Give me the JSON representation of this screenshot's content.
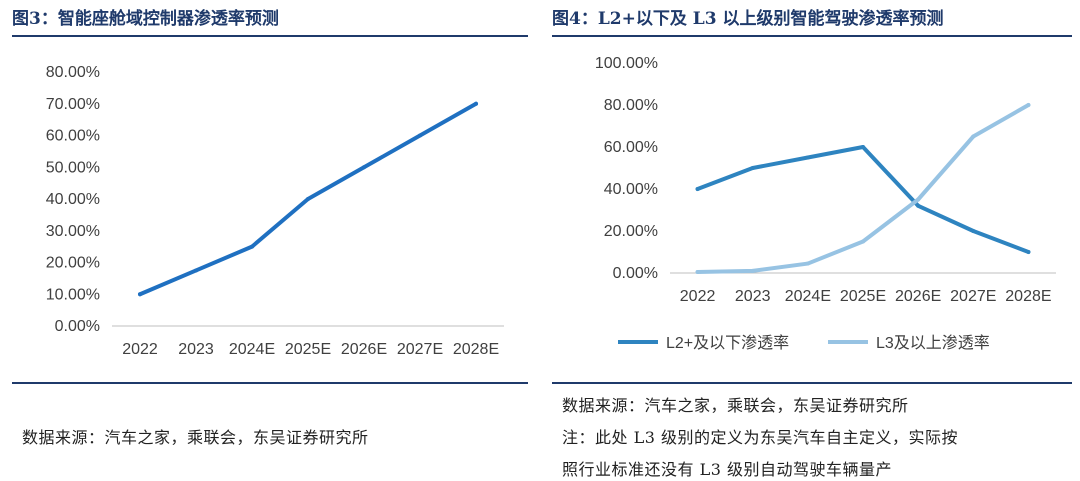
{
  "left": {
    "title": "图3：智能座舱域控制器渗透率预测",
    "source": "数据来源：汽车之家，乘联会，东吴证券研究所"
  },
  "right": {
    "title": "图4：L2+以下及 L3 以上级别智能驾驶渗透率预测",
    "source_line1": "数据来源：汽车之家，乘联会，东吴证券研究所",
    "note_line1": "注：此处 L3 级别的定义为东吴汽车自主定义，实际按",
    "note_line2": "照行业标准还没有 L3 级别自动驾驶车辆量产"
  },
  "chart_data": [
    {
      "type": "line",
      "title": "智能座舱域控制器渗透率预测",
      "categories": [
        "2022",
        "2023",
        "2024E",
        "2025E",
        "2026E",
        "2027E",
        "2028E"
      ],
      "series": [
        {
          "values": [
            10,
            17.5,
            25,
            40,
            50,
            60,
            70
          ],
          "color": "#1f70c1"
        }
      ],
      "yticks": [
        "0.00%",
        "10.00%",
        "20.00%",
        "30.00%",
        "40.00%",
        "50.00%",
        "60.00%",
        "70.00%",
        "80.00%"
      ],
      "ylim": [
        0,
        80
      ],
      "grid": false,
      "legend": "none"
    },
    {
      "type": "line",
      "title": "L2+以下及 L3 以上级别智能驾驶渗透率预测",
      "categories": [
        "2022",
        "2023",
        "2024E",
        "2025E",
        "2026E",
        "2027E",
        "2028E"
      ],
      "series": [
        {
          "name": "L2+及以下渗透率",
          "values": [
            40,
            50,
            55,
            60,
            32,
            20,
            10
          ],
          "color": "#2e84c0"
        },
        {
          "name": "L3及以上渗透率",
          "values": [
            0.5,
            1,
            4.5,
            15,
            35,
            65,
            80
          ],
          "color": "#97c3e3"
        }
      ],
      "yticks": [
        "0.00%",
        "20.00%",
        "40.00%",
        "60.00%",
        "80.00%",
        "100.00%"
      ],
      "ylim": [
        0,
        100
      ],
      "grid": false,
      "legend": "bottom"
    }
  ]
}
